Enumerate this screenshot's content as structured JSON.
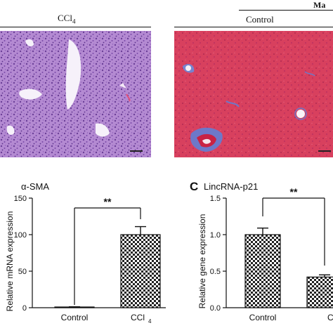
{
  "header": {
    "left_label": "CCl",
    "left_sub": "4",
    "right_label": "Control",
    "top_right_fragment": "Ma"
  },
  "micrographs": {
    "left_stain": "hematoxylin-eosin purple",
    "right_stain": "masson trichrome red"
  },
  "panel_b": {
    "title": "α-SMA",
    "y_label": "Relative mRNA expression",
    "significance": "**",
    "chart_data": {
      "type": "bar",
      "categories": [
        "Control",
        "CCl4"
      ],
      "values": [
        1,
        100
      ],
      "errors": [
        0.3,
        11
      ],
      "ylim": [
        0,
        150
      ],
      "yticks": [
        0,
        50,
        100,
        150
      ],
      "ylabel": "Relative mRNA expression",
      "title": "α-SMA"
    },
    "x_labels": [
      "Control",
      "CCl",
      "4"
    ]
  },
  "panel_c": {
    "letter": "C",
    "title": "LincRNA-p21",
    "y_label": "Relative gene expression",
    "significance": "**",
    "chart_data": {
      "type": "bar",
      "categories": [
        "Control",
        "C"
      ],
      "values": [
        1.0,
        0.42
      ],
      "errors": [
        0.09,
        0.03
      ],
      "ylim": [
        0,
        1.5
      ],
      "yticks": [
        "0.0",
        "0.5",
        "1.0",
        "1.5"
      ],
      "ylabel": "Relative gene expression",
      "title": "LincRNA-p21"
    },
    "x_labels": [
      "Control",
      "C"
    ]
  },
  "colors": {
    "he_purple": "#a77fc4",
    "trichrome_red": "#d6425f",
    "axis": "#111111"
  }
}
